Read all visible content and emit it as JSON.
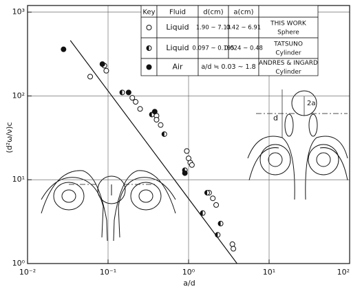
{
  "chart_data": {
    "type": "scatter",
    "x_label": "a/d",
    "y_label": "(d²ω/ν)c",
    "log_x": true,
    "log_y": true,
    "grid": true,
    "xlim": [
      0.01,
      100
    ],
    "ylim": [
      1,
      1200
    ],
    "xticks": [
      {
        "value": 0.01,
        "label": "10⁻²"
      },
      {
        "value": 0.1,
        "label": "10⁻¹"
      },
      {
        "value": 1,
        "label": "10⁰"
      },
      {
        "value": 10,
        "label": "10¹"
      },
      {
        "value": 100,
        "label": "10²"
      }
    ],
    "yticks": [
      {
        "value": 1,
        "label": "10⁰"
      },
      {
        "value": 10,
        "label": "10¹"
      },
      {
        "value": 100,
        "label": "10²"
      },
      {
        "value": 1000,
        "label": "10³"
      }
    ],
    "series": [
      {
        "marker": "open",
        "color": "#111111",
        "x": [
          0.06,
          0.09,
          0.095,
          0.2,
          0.22,
          0.25,
          0.4,
          0.4,
          0.45,
          0.95,
          1.0,
          1.05,
          1.1,
          1.8,
          2.0,
          2.2,
          3.5,
          3.6
        ],
        "values": [
          170,
          230,
          200,
          95,
          85,
          70,
          58,
          52,
          45,
          22,
          18,
          16,
          15,
          7,
          6,
          5,
          1.7,
          1.5
        ]
      },
      {
        "marker": "half",
        "color": "#111111",
        "x": [
          0.15,
          0.35,
          0.5,
          0.9,
          1.7,
          1.5,
          2.5,
          2.3
        ],
        "values": [
          110,
          60,
          35,
          13,
          7,
          4,
          3,
          2.2
        ]
      },
      {
        "marker": "filled",
        "color": "#111111",
        "x": [
          0.028,
          0.085,
          0.18,
          0.38,
          0.9
        ],
        "values": [
          360,
          240,
          110,
          65,
          12
        ]
      }
    ],
    "fit_line": {
      "x": [
        0.034,
        4.0
      ],
      "values": [
        460,
        1
      ]
    },
    "key_table": {
      "headers": [
        "Key",
        "Fluid",
        "d(cm)",
        "a(cm)"
      ],
      "rows": [
        {
          "fluid": "Liquid",
          "d": "1.90 ~ 7.13",
          "a": "0.42 ~ 6.91",
          "source": "THIS WORK",
          "shape": "Sphere"
        },
        {
          "fluid": "Liquid",
          "d": "0.097 ~ 0.195",
          "a": "0.024 ~ 0.48",
          "source": "TATSUNO",
          "shape": "Cylinder"
        },
        {
          "fluid": "Air",
          "da": "a/d ≒ 0.03 ~ 1.8",
          "source": "ANDRES & INGARD",
          "shape": "Cylinder"
        }
      ]
    },
    "annotations": [
      "d",
      "2a"
    ]
  }
}
